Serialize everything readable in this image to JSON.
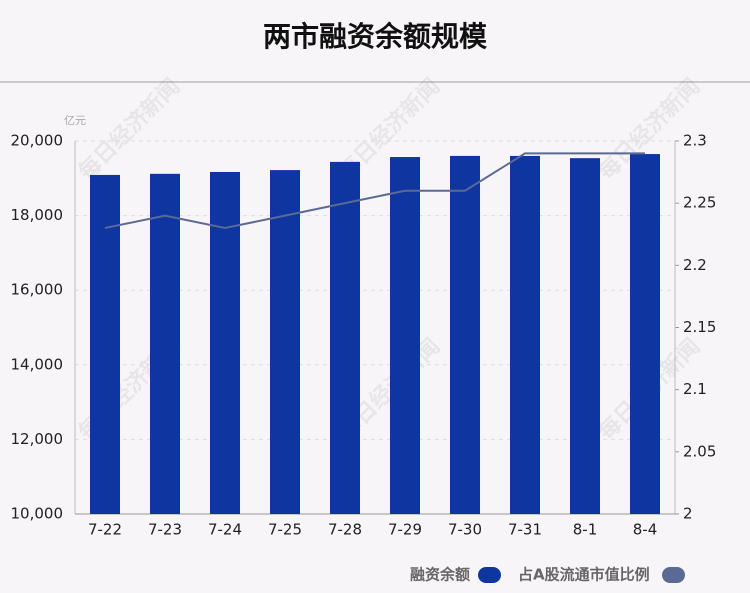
{
  "chart_data": {
    "type": "bar_line",
    "title": "两市融资余额规模",
    "y_unit": "亿元",
    "watermark": "每日经济新闻",
    "categories": [
      "7-22",
      "7-23",
      "7-24",
      "7-25",
      "7-28",
      "7-29",
      "7-30",
      "7-31",
      "8-1",
      "8-4"
    ],
    "series": [
      {
        "name": "融资余额",
        "type": "bar",
        "color": "#0f35a0",
        "values": [
          19090,
          19120,
          19170,
          19220,
          19440,
          19570,
          19600,
          19600,
          19540,
          19650
        ]
      },
      {
        "name": "占A股流通市值比例",
        "type": "line",
        "axis": "y2",
        "color": "#5a6a95",
        "values": [
          2.23,
          2.24,
          2.23,
          2.24,
          2.25,
          2.26,
          2.26,
          2.29,
          2.29,
          2.29
        ]
      }
    ],
    "ylim": [
      10000,
      20000
    ],
    "yticks": [
      {
        "value": 10000,
        "label": "10,000"
      },
      {
        "value": 12000,
        "label": "12,000"
      },
      {
        "value": 14000,
        "label": "14,000"
      },
      {
        "value": 16000,
        "label": "16,000"
      },
      {
        "value": 18000,
        "label": "18,000"
      },
      {
        "value": 20000,
        "label": "20,000"
      }
    ],
    "y2lim": [
      2,
      2.3
    ],
    "y2ticks": [
      2,
      2.05,
      2.1,
      2.15,
      2.2,
      2.25,
      2.3
    ],
    "grid": true
  }
}
